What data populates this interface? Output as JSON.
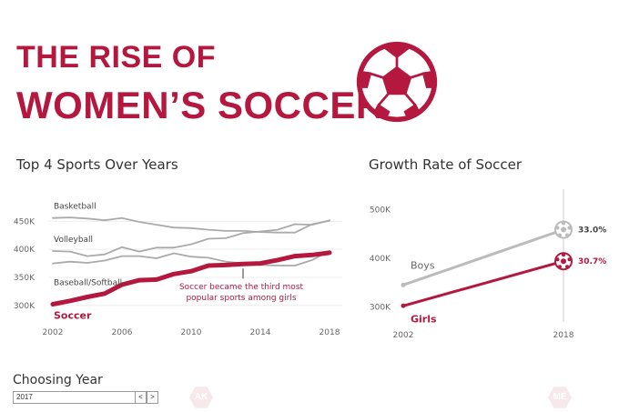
{
  "header": {
    "title_line1": "THE RISE OF",
    "title_line2": "WOMEN’S SOCCER",
    "icon": "soccer-ball-icon"
  },
  "colors": {
    "accent": "#b5183f",
    "other_sports": "#aaaaaa",
    "boys": "#bbbbbb"
  },
  "chart_data": [
    {
      "type": "line",
      "title": "Top 4 Sports Over Years",
      "xlabel": "",
      "ylabel": "",
      "x": [
        2002,
        2003,
        2004,
        2005,
        2006,
        2007,
        2008,
        2009,
        2010,
        2011,
        2012,
        2013,
        2014,
        2015,
        2016,
        2017,
        2018
      ],
      "x_ticks": [
        "2002",
        "2006",
        "2010",
        "2014",
        "2018"
      ],
      "y_ticks": [
        "300K",
        "350K",
        "400K",
        "450K"
      ],
      "ylim": [
        285,
        475
      ],
      "grid": true,
      "series": [
        {
          "name": "Basketball",
          "highlight": false,
          "values": [
            456,
            457,
            455,
            452,
            456,
            449,
            444,
            439,
            438,
            435,
            433,
            433,
            431,
            430,
            430,
            445,
            451
          ]
        },
        {
          "name": "Volleyball",
          "highlight": false,
          "values": [
            397,
            396,
            388,
            391,
            404,
            396,
            403,
            403,
            409,
            419,
            420,
            429,
            432,
            435,
            445,
            444,
            452
          ]
        },
        {
          "name": "Baseball/Softball",
          "highlight": false,
          "values": [
            375,
            378,
            376,
            380,
            388,
            388,
            384,
            393,
            387,
            385,
            378,
            375,
            372,
            371,
            371,
            381,
            397
          ]
        },
        {
          "name": "Soccer",
          "highlight": true,
          "values": [
            302,
            308,
            315,
            321,
            337,
            345,
            346,
            356,
            361,
            371,
            372,
            374,
            375,
            381,
            388,
            390,
            394
          ]
        }
      ],
      "annotations": [
        {
          "x": 2013,
          "text_line1": "Soccer became the third most",
          "text_line2": "popular sports among girls"
        }
      ]
    },
    {
      "type": "line",
      "title": "Growth Rate of Soccer",
      "xlabel": "",
      "ylabel": "",
      "x_ticks": [
        "2002",
        "2018"
      ],
      "y_ticks": [
        "300K",
        "400K",
        "500K"
      ],
      "ylim": [
        280,
        520
      ],
      "grid": false,
      "series": [
        {
          "name": "Boys",
          "values": [
            {
              "x": 2002,
              "y": 345
            },
            {
              "x": 2018,
              "y": 459
            }
          ],
          "label": "33.0%"
        },
        {
          "name": "Girls",
          "values": [
            {
              "x": 2002,
              "y": 302
            },
            {
              "x": 2018,
              "y": 394
            }
          ],
          "label": "30.7%"
        }
      ]
    }
  ],
  "filter": {
    "title": "Choosing Year",
    "value": "2017",
    "prev_label": "<",
    "next_label": ">"
  },
  "hexagons": [
    "AK",
    "ME"
  ]
}
